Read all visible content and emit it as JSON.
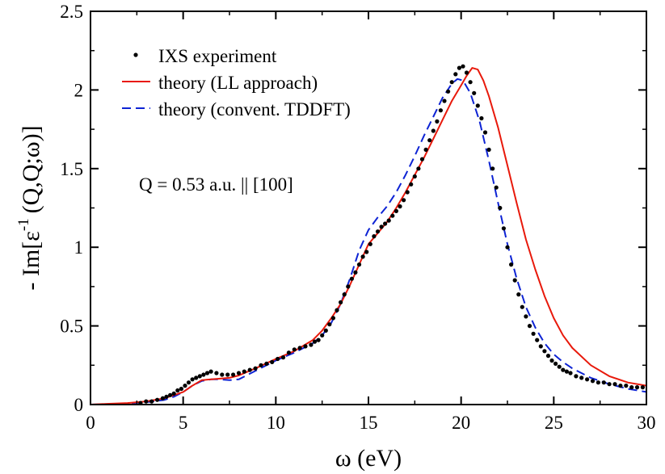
{
  "chart_data": {
    "type": "line",
    "xlabel": "ω (eV)",
    "ylabel": {
      "prefix": "- Im[ε",
      "superscript": "-1",
      "suffix": "(Q,Q;ω)]"
    },
    "xlim": [
      0,
      30
    ],
    "ylim": [
      0,
      2.5
    ],
    "xticks": [
      0,
      5,
      10,
      15,
      20,
      25,
      30
    ],
    "yticks": [
      0,
      0.5,
      1,
      1.5,
      2,
      2.5
    ],
    "xtick_labels": [
      "0",
      "5",
      "10",
      "15",
      "20",
      "25",
      "30"
    ],
    "ytick_labels": [
      "0",
      "0.5",
      "1",
      "1.5",
      "2",
      "2.5"
    ],
    "grid": false,
    "legend_position": "top-left",
    "annotation": "Q = 0.53 a.u. || [100]",
    "series": [
      {
        "name": "IXS experiment",
        "style": "dots",
        "color": "#000000",
        "x": [
          2.7,
          3.0,
          3.3,
          3.6,
          3.9,
          4.1,
          4.3,
          4.5,
          4.7,
          4.9,
          5.1,
          5.3,
          5.5,
          5.7,
          5.9,
          6.1,
          6.3,
          6.5,
          6.8,
          7.1,
          7.4,
          7.7,
          8.0,
          8.3,
          8.6,
          8.9,
          9.2,
          9.5,
          9.8,
          10.1,
          10.4,
          10.7,
          11.0,
          11.3,
          11.6,
          11.9,
          12.1,
          12.3,
          12.5,
          12.7,
          12.9,
          13.1,
          13.3,
          13.5,
          13.7,
          13.9,
          14.1,
          14.3,
          14.5,
          14.7,
          14.9,
          15.1,
          15.3,
          15.5,
          15.7,
          15.9,
          16.1,
          16.3,
          16.5,
          16.7,
          16.9,
          17.1,
          17.3,
          17.5,
          17.7,
          17.9,
          18.1,
          18.3,
          18.5,
          18.7,
          18.9,
          19.1,
          19.3,
          19.5,
          19.7,
          19.9,
          20.1,
          20.3,
          20.5,
          20.7,
          20.9,
          21.1,
          21.3,
          21.5,
          21.7,
          21.9,
          22.1,
          22.3,
          22.5,
          22.7,
          22.9,
          23.1,
          23.3,
          23.5,
          23.7,
          23.9,
          24.1,
          24.3,
          24.5,
          24.7,
          24.9,
          25.1,
          25.3,
          25.5,
          25.7,
          25.9,
          26.2,
          26.5,
          26.8,
          27.1,
          27.4,
          27.7,
          28.0,
          28.3,
          28.6,
          28.9,
          29.2,
          29.5,
          29.8
        ],
        "y": [
          0.01,
          0.02,
          0.02,
          0.03,
          0.04,
          0.05,
          0.06,
          0.07,
          0.09,
          0.1,
          0.12,
          0.14,
          0.16,
          0.17,
          0.18,
          0.19,
          0.2,
          0.21,
          0.2,
          0.19,
          0.19,
          0.19,
          0.2,
          0.21,
          0.22,
          0.23,
          0.25,
          0.26,
          0.27,
          0.29,
          0.3,
          0.33,
          0.35,
          0.36,
          0.37,
          0.38,
          0.4,
          0.41,
          0.44,
          0.47,
          0.51,
          0.55,
          0.6,
          0.65,
          0.7,
          0.75,
          0.8,
          0.84,
          0.89,
          0.94,
          0.97,
          1.02,
          1.07,
          1.1,
          1.13,
          1.15,
          1.17,
          1.2,
          1.23,
          1.26,
          1.3,
          1.35,
          1.4,
          1.45,
          1.5,
          1.56,
          1.62,
          1.68,
          1.74,
          1.8,
          1.87,
          1.93,
          1.99,
          2.05,
          2.1,
          2.14,
          2.15,
          2.11,
          2.05,
          1.98,
          1.9,
          1.82,
          1.73,
          1.62,
          1.5,
          1.38,
          1.25,
          1.12,
          1.0,
          0.89,
          0.79,
          0.7,
          0.62,
          0.56,
          0.5,
          0.45,
          0.41,
          0.37,
          0.34,
          0.31,
          0.28,
          0.26,
          0.24,
          0.22,
          0.21,
          0.2,
          0.18,
          0.17,
          0.16,
          0.15,
          0.14,
          0.14,
          0.13,
          0.13,
          0.12,
          0.12,
          0.11,
          0.11,
          0.11
        ]
      },
      {
        "name": "theory (LL approach)",
        "style": "solid",
        "color": "#e8190b",
        "x": [
          0,
          1,
          2,
          3,
          4,
          5,
          5.5,
          6,
          6.5,
          7,
          7.5,
          8,
          9,
          10,
          11,
          12,
          12.5,
          13,
          13.5,
          14,
          14.5,
          15,
          15.5,
          16,
          16.5,
          17,
          17.5,
          18,
          18.5,
          19,
          19.5,
          20,
          20.3,
          20.6,
          20.9,
          21.2,
          21.5,
          22,
          22.5,
          23,
          23.5,
          24,
          24.5,
          25,
          25.5,
          26,
          27,
          28,
          29,
          30
        ],
        "y": [
          0.0,
          0.005,
          0.01,
          0.02,
          0.04,
          0.08,
          0.12,
          0.155,
          0.16,
          0.165,
          0.17,
          0.185,
          0.235,
          0.29,
          0.34,
          0.41,
          0.47,
          0.55,
          0.64,
          0.76,
          0.89,
          1.02,
          1.09,
          1.16,
          1.25,
          1.35,
          1.46,
          1.57,
          1.69,
          1.81,
          1.93,
          2.03,
          2.09,
          2.14,
          2.13,
          2.06,
          1.96,
          1.76,
          1.52,
          1.28,
          1.05,
          0.86,
          0.69,
          0.55,
          0.44,
          0.36,
          0.25,
          0.18,
          0.14,
          0.12
        ]
      },
      {
        "name": "theory (convent. TDDFT)",
        "style": "dashed",
        "color": "#0d23d4",
        "x": [
          0,
          1,
          2,
          3,
          4,
          4.5,
          5,
          5.5,
          6,
          6.5,
          7,
          7.5,
          8,
          9,
          10,
          11,
          12,
          12.5,
          13,
          13.5,
          14,
          14.5,
          15,
          15.5,
          16,
          16.5,
          17,
          17.5,
          18,
          18.5,
          19,
          19.5,
          19.8,
          20.1,
          20.5,
          21,
          21.5,
          22,
          22.5,
          23,
          23.5,
          24,
          24.5,
          25,
          25.5,
          26,
          27,
          28,
          29,
          30
        ],
        "y": [
          0.0,
          0.003,
          0.007,
          0.015,
          0.03,
          0.05,
          0.08,
          0.12,
          0.15,
          0.16,
          0.16,
          0.155,
          0.16,
          0.22,
          0.28,
          0.33,
          0.39,
          0.44,
          0.52,
          0.64,
          0.8,
          0.98,
          1.11,
          1.19,
          1.26,
          1.35,
          1.46,
          1.58,
          1.71,
          1.83,
          1.95,
          2.04,
          2.07,
          2.06,
          1.98,
          1.8,
          1.55,
          1.28,
          1.02,
          0.8,
          0.62,
          0.49,
          0.39,
          0.32,
          0.27,
          0.23,
          0.17,
          0.13,
          0.1,
          0.08
        ]
      }
    ]
  }
}
